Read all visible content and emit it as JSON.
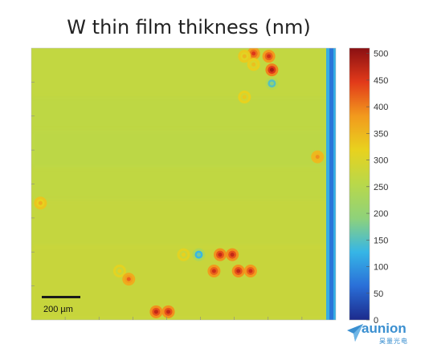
{
  "chart_data": {
    "type": "heatmap",
    "title": "W thin film thikness (nm)",
    "colorbar": {
      "min": 0,
      "max": 510,
      "ticks": [
        0,
        50,
        100,
        150,
        200,
        250,
        300,
        350,
        400,
        450,
        500
      ]
    },
    "background_level": 265,
    "right_edge_level": 120,
    "scale_bar": {
      "label": "200 µm"
    },
    "spots": [
      {
        "x": 0.73,
        "y": 0.02,
        "value": 450
      },
      {
        "x": 0.78,
        "y": 0.03,
        "value": 460
      },
      {
        "x": 0.7,
        "y": 0.03,
        "value": 350
      },
      {
        "x": 0.73,
        "y": 0.06,
        "value": 340
      },
      {
        "x": 0.79,
        "y": 0.08,
        "value": 490
      },
      {
        "x": 0.79,
        "y": 0.13,
        "value": 190
      },
      {
        "x": 0.7,
        "y": 0.18,
        "value": 330
      },
      {
        "x": 0.94,
        "y": 0.4,
        "value": 390
      },
      {
        "x": 0.03,
        "y": 0.57,
        "value": 360
      },
      {
        "x": 0.5,
        "y": 0.76,
        "value": 320
      },
      {
        "x": 0.55,
        "y": 0.76,
        "value": 170
      },
      {
        "x": 0.62,
        "y": 0.76,
        "value": 470
      },
      {
        "x": 0.66,
        "y": 0.76,
        "value": 470
      },
      {
        "x": 0.6,
        "y": 0.82,
        "value": 460
      },
      {
        "x": 0.68,
        "y": 0.82,
        "value": 470
      },
      {
        "x": 0.72,
        "y": 0.82,
        "value": 460
      },
      {
        "x": 0.29,
        "y": 0.82,
        "value": 320
      },
      {
        "x": 0.32,
        "y": 0.85,
        "value": 420
      },
      {
        "x": 0.41,
        "y": 0.97,
        "value": 470
      },
      {
        "x": 0.45,
        "y": 0.97,
        "value": 470
      }
    ]
  },
  "logo": {
    "text": "aunion",
    "subtext": "昊量光电"
  },
  "colors": {
    "cmap": [
      "#1c2a8c",
      "#2a6fd8",
      "#36b6e6",
      "#8fd27a",
      "#b9d84a",
      "#e8d21e",
      "#f29a1d",
      "#e23a1a",
      "#8a0f12"
    ],
    "logo": "#3a8fd0"
  }
}
